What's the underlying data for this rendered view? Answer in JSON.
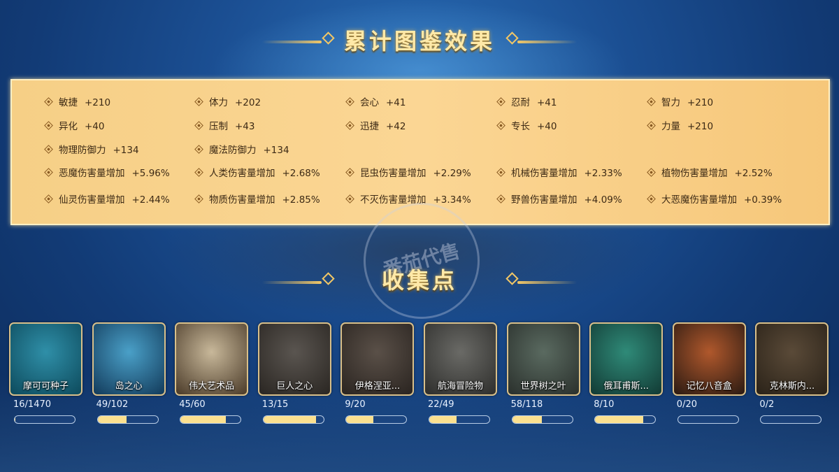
{
  "header": {
    "title": "累计图鉴效果"
  },
  "stats": [
    [
      {
        "name": "敏捷",
        "value": "+210"
      },
      {
        "name": "体力",
        "value": "+202"
      },
      {
        "name": "会心",
        "value": "+41"
      },
      {
        "name": "忍耐",
        "value": "+41"
      },
      {
        "name": "智力",
        "value": "+210"
      }
    ],
    [
      {
        "name": "异化",
        "value": "+40"
      },
      {
        "name": "压制",
        "value": "+43"
      },
      {
        "name": "迅捷",
        "value": "+42"
      },
      {
        "name": "专长",
        "value": "+40"
      },
      {
        "name": "力量",
        "value": "+210"
      }
    ],
    [
      {
        "name": "物理防御力",
        "value": "+134"
      },
      {
        "name": "魔法防御力",
        "value": "+134"
      }
    ],
    [
      {
        "name": "恶魔伤害量增加",
        "value": "+5.96%"
      },
      {
        "name": "人类伤害量增加",
        "value": "+2.68%"
      },
      {
        "name": "昆虫伤害量增加",
        "value": "+2.29%"
      },
      {
        "name": "机械伤害量增加",
        "value": "+2.33%"
      },
      {
        "name": "植物伤害量增加",
        "value": "+2.52%"
      }
    ],
    [
      {
        "name": "仙灵伤害量增加",
        "value": "+2.44%"
      },
      {
        "name": "物质伤害量增加",
        "value": "+2.85%"
      },
      {
        "name": "不灭伤害量增加",
        "value": "+3.34%"
      },
      {
        "name": "野兽伤害量增加",
        "value": "+4.09%"
      },
      {
        "name": "大恶魔伤害量增加",
        "value": "+0.39%"
      }
    ]
  ],
  "collection": {
    "title": "收集点",
    "items": [
      {
        "name": "摩可可种子",
        "count": "16/1470",
        "progress": 0.011,
        "colors": [
          "#2f8fa8",
          "#0d4a5c"
        ]
      },
      {
        "name": "岛之心",
        "count": "49/102",
        "progress": 0.48,
        "colors": [
          "#4aa0c8",
          "#123a5a"
        ]
      },
      {
        "name": "伟大艺术品",
        "count": "45/60",
        "progress": 0.75,
        "colors": [
          "#c8b89a",
          "#4a3a28"
        ]
      },
      {
        "name": "巨人之心",
        "count": "13/15",
        "progress": 0.87,
        "colors": [
          "#5a5550",
          "#2a2622"
        ]
      },
      {
        "name": "伊格涅亚...",
        "count": "9/20",
        "progress": 0.45,
        "colors": [
          "#5a5048",
          "#2a2420"
        ]
      },
      {
        "name": "航海冒险物",
        "count": "22/49",
        "progress": 0.45,
        "colors": [
          "#6a6a66",
          "#2e2e2c"
        ]
      },
      {
        "name": "世界树之叶",
        "count": "58/118",
        "progress": 0.49,
        "colors": [
          "#5a6a60",
          "#2a302c"
        ]
      },
      {
        "name": "俄耳甫斯...",
        "count": "8/10",
        "progress": 0.8,
        "colors": [
          "#2f8a78",
          "#123a34"
        ]
      },
      {
        "name": "记忆八音盒",
        "count": "0/20",
        "progress": 0,
        "colors": [
          "#b0582c",
          "#2a1a12"
        ]
      },
      {
        "name": "克林斯内...",
        "count": "0/2",
        "progress": 0,
        "colors": [
          "#5a4a38",
          "#2a2218"
        ]
      }
    ]
  },
  "watermark": "番茄代售",
  "colors": {
    "accent": "#f2c766",
    "progress_fill": "#fbe08f",
    "panel": "#f9d390"
  }
}
